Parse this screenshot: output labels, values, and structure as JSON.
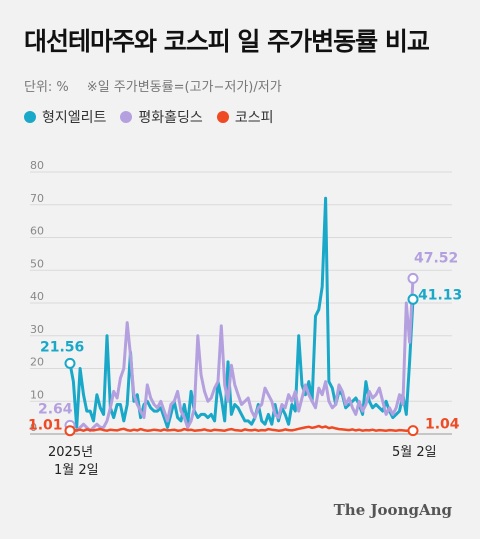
{
  "header": {
    "title": "대선테마주와 코스피 일 주가변동률 비교",
    "unit": "단위: %",
    "formula": "※일 주가변동률=(고가−저가)/저가"
  },
  "credit": "The JoongAng",
  "colors": {
    "teal": "#1aa8c8",
    "purple": "#b4a0df",
    "red": "#ef4a23",
    "grid": "#d9d9d9"
  },
  "chart_data": {
    "type": "line",
    "title": "대선테마주와 코스피 일 주가변동률 비교",
    "ylabel": "단위: %",
    "ylim": [
      0,
      80
    ],
    "yticks": [
      0,
      10,
      20,
      30,
      40,
      50,
      60,
      70,
      80
    ],
    "x_start_label": "2025년\n1월 2일",
    "x_end_label": "5월 2일",
    "legend_position": "top-left",
    "series": [
      {
        "name": "형지엘리트",
        "color": "#1aa8c8",
        "start_label": "21.56",
        "end_label": "41.13",
        "values": [
          21.56,
          16,
          2,
          20,
          12,
          7,
          7,
          4,
          12,
          8,
          6,
          30,
          8,
          5,
          9,
          9,
          4,
          9,
          25,
          10,
          12,
          5,
          9,
          10,
          8,
          7,
          7,
          8,
          5,
          2,
          6,
          10,
          5,
          4,
          9,
          3,
          13,
          7,
          5,
          6,
          6,
          5,
          6,
          4,
          16,
          11,
          4,
          22,
          6,
          9,
          8,
          6,
          4,
          4,
          3,
          5,
          9,
          4,
          3,
          6,
          3,
          9,
          4,
          8,
          6,
          3,
          9,
          7,
          30,
          15,
          12,
          16,
          10,
          36,
          38,
          45,
          72,
          16,
          14,
          9,
          13,
          12,
          8,
          9,
          10,
          11,
          9,
          6,
          16,
          10,
          8,
          9,
          8,
          7,
          10,
          7,
          5,
          6,
          7,
          12,
          6,
          22,
          41.13
        ]
      },
      {
        "name": "평화홀딩스",
        "color": "#b4a0df",
        "start_label": "2.64",
        "end_label": "47.52",
        "values": [
          2.64,
          1,
          1,
          2,
          3,
          2,
          1,
          2,
          3,
          2,
          2,
          4,
          8,
          13,
          11,
          17,
          20,
          34,
          24,
          12,
          9,
          7,
          5,
          15,
          11,
          9,
          8,
          10,
          7,
          4,
          9,
          10,
          13,
          7,
          5,
          2,
          4,
          8,
          30,
          18,
          13,
          10,
          11,
          14,
          16,
          33,
          15,
          10,
          21,
          15,
          12,
          9,
          10,
          11,
          7,
          5,
          8,
          9,
          14,
          12,
          10,
          6,
          5,
          9,
          8,
          12,
          10,
          13,
          7,
          11,
          15,
          12,
          10,
          8,
          14,
          12,
          16,
          10,
          8,
          9,
          15,
          13,
          9,
          11,
          8,
          6,
          10,
          7,
          9,
          13,
          11,
          12,
          14,
          10,
          6,
          8,
          6,
          8,
          12,
          9,
          40,
          28,
          47.52
        ]
      },
      {
        "name": "코스피",
        "color": "#ef4a23",
        "start_label": "1.01",
        "end_label": "1.04",
        "values": [
          1.01,
          1.2,
          1.1,
          1.3,
          1.0,
          1.4,
          1.2,
          1.1,
          1.3,
          1.5,
          1.2,
          1.0,
          1.3,
          1.2,
          1.1,
          1.4,
          1.6,
          1.2,
          1.0,
          1.3,
          1.1,
          1.5,
          1.2,
          1.0,
          1.1,
          1.3,
          1.2,
          1.0,
          1.4,
          1.1,
          1.2,
          1.3,
          1.0,
          1.1,
          1.5,
          1.2,
          1.3,
          1.0,
          1.1,
          1.2,
          1.4,
          1.1,
          1.0,
          1.3,
          1.2,
          1.1,
          1.0,
          1.3,
          1.5,
          1.2,
          1.1,
          1.0,
          1.4,
          1.2,
          1.1,
          1.3,
          1.0,
          1.2,
          1.1,
          1.5,
          1.3,
          1.2,
          1.0,
          1.1,
          1.4,
          1.2,
          1.1,
          1.3,
          1.6,
          1.8,
          2.0,
          2.2,
          1.9,
          2.1,
          2.4,
          2.0,
          2.3,
          1.8,
          2.0,
          1.7,
          1.5,
          1.4,
          1.3,
          1.2,
          1.4,
          1.1,
          1.3,
          1.0,
          1.2,
          1.1,
          1.3,
          1.0,
          1.2,
          1.1,
          1.0,
          1.2,
          1.1,
          1.0,
          1.2,
          1.1,
          1.0,
          1.1,
          1.04
        ]
      }
    ]
  }
}
